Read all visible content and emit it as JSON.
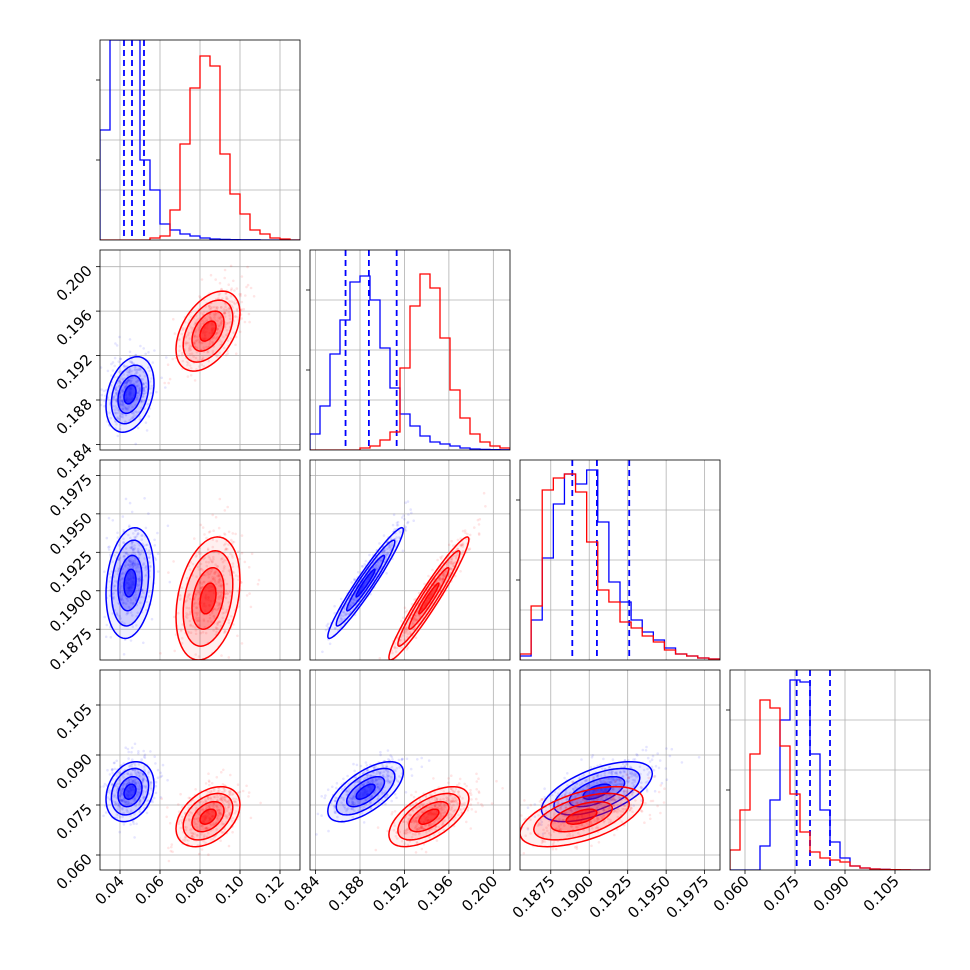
{
  "chart_data": {
    "type": "corner",
    "parameters": 4,
    "grid": true,
    "series": [
      {
        "color": "#0000ff",
        "means": [
          0.045,
          0.1885,
          0.1905,
          0.079
        ],
        "sds": [
          0.006,
          0.0017,
          0.0018,
          0.0045
        ],
        "quantiles": [
          [
            0.042,
            0.046,
            0.052
          ],
          [
            0.1867,
            0.1888,
            0.1913
          ],
          [
            0.1889,
            0.1905,
            0.1926
          ],
          [
            0.0755,
            0.0795,
            0.0855
          ]
        ],
        "hist": [
          [
            0.55,
            1.0,
            1.0,
            1.0,
            0.4,
            0.25,
            0.08,
            0.05,
            0.03,
            0.02,
            0.01,
            0.005,
            0.003,
            0.002,
            0.001,
            0.001,
            0,
            0,
            0,
            0
          ],
          [
            0.08,
            0.22,
            0.48,
            0.65,
            0.84,
            0.87,
            0.75,
            0.51,
            0.31,
            0.18,
            0.12,
            0.07,
            0.04,
            0.03,
            0.02,
            0.01,
            0.005,
            0.003,
            0.002,
            0.001
          ],
          [
            0.02,
            0.2,
            0.51,
            0.78,
            0.93,
            0.88,
            0.95,
            0.69,
            0.39,
            0.29,
            0.2,
            0.14,
            0.1,
            0.06,
            0.03,
            0.02,
            0.01,
            0.005
          ],
          [
            0,
            0,
            0,
            0.12,
            0.35,
            0.75,
            0.95,
            0.94,
            0.58,
            0.3,
            0.14,
            0.06,
            0.02,
            0.01,
            0.005,
            0.003,
            0.001,
            0,
            0,
            0
          ]
        ],
        "corr": {
          "1-0": 0.3,
          "2-0": 0.2,
          "2-1": 0.96,
          "3-0": 0.25,
          "3-1": 0.65,
          "3-2": 0.6
        }
      },
      {
        "color": "#ff0000",
        "means": [
          0.084,
          0.1942,
          0.1895,
          0.0715
        ],
        "sds": [
          0.008,
          0.0018,
          0.002,
          0.0045
        ],
        "quantiles": null,
        "hist": [
          [
            0,
            0,
            0,
            0,
            0,
            0.01,
            0.02,
            0.15,
            0.48,
            0.76,
            0.92,
            0.87,
            0.43,
            0.23,
            0.13,
            0.05,
            0.03,
            0.01,
            0.005,
            0
          ],
          [
            0,
            0,
            0,
            0,
            0,
            0.01,
            0.02,
            0.05,
            0.09,
            0.41,
            0.72,
            0.88,
            0.81,
            0.56,
            0.3,
            0.16,
            0.08,
            0.04,
            0.02,
            0.01
          ],
          [
            0.03,
            0.27,
            0.85,
            0.91,
            0.93,
            0.84,
            0.59,
            0.35,
            0.29,
            0.19,
            0.16,
            0.12,
            0.09,
            0.05,
            0.03,
            0.02,
            0.01,
            0.005
          ],
          [
            0.1,
            0.3,
            0.58,
            0.85,
            0.81,
            0.62,
            0.38,
            0.19,
            0.09,
            0.06,
            0.05,
            0.04,
            0.02,
            0.01,
            0.005,
            0.003,
            0.002,
            0.001,
            0,
            0
          ]
        ],
        "corr": {
          "1-0": 0.45,
          "2-0": 0.3,
          "2-1": 0.96,
          "3-0": 0.4,
          "3-1": 0.6,
          "3-2": 0.55
        }
      }
    ],
    "axes": [
      {
        "range": [
          0.03,
          0.13
        ],
        "ticks": [
          0.04,
          0.06,
          0.08,
          0.1,
          0.12
        ],
        "ticklabels": [
          "0.04",
          "0.06",
          "0.08",
          "0.10",
          "0.12"
        ]
      },
      {
        "range": [
          0.1835,
          0.2015
        ],
        "ticks": [
          0.184,
          0.188,
          0.192,
          0.196,
          0.2
        ],
        "ticklabels": [
          "0.184",
          "0.188",
          "0.192",
          "0.196",
          "0.200"
        ]
      },
      {
        "range": [
          0.1855,
          0.1985
        ],
        "ticks": [
          0.1875,
          0.19,
          0.1925,
          0.195,
          0.1975
        ],
        "ticklabels": [
          "0.1875",
          "0.1900",
          "0.1925",
          "0.1950",
          "0.1975"
        ]
      },
      {
        "range": [
          0.0555,
          0.1155
        ],
        "ticks": [
          0.06,
          0.075,
          0.09,
          0.105
        ],
        "ticklabels": [
          "0.060",
          "0.075",
          "0.090",
          "0.105"
        ]
      }
    ]
  }
}
